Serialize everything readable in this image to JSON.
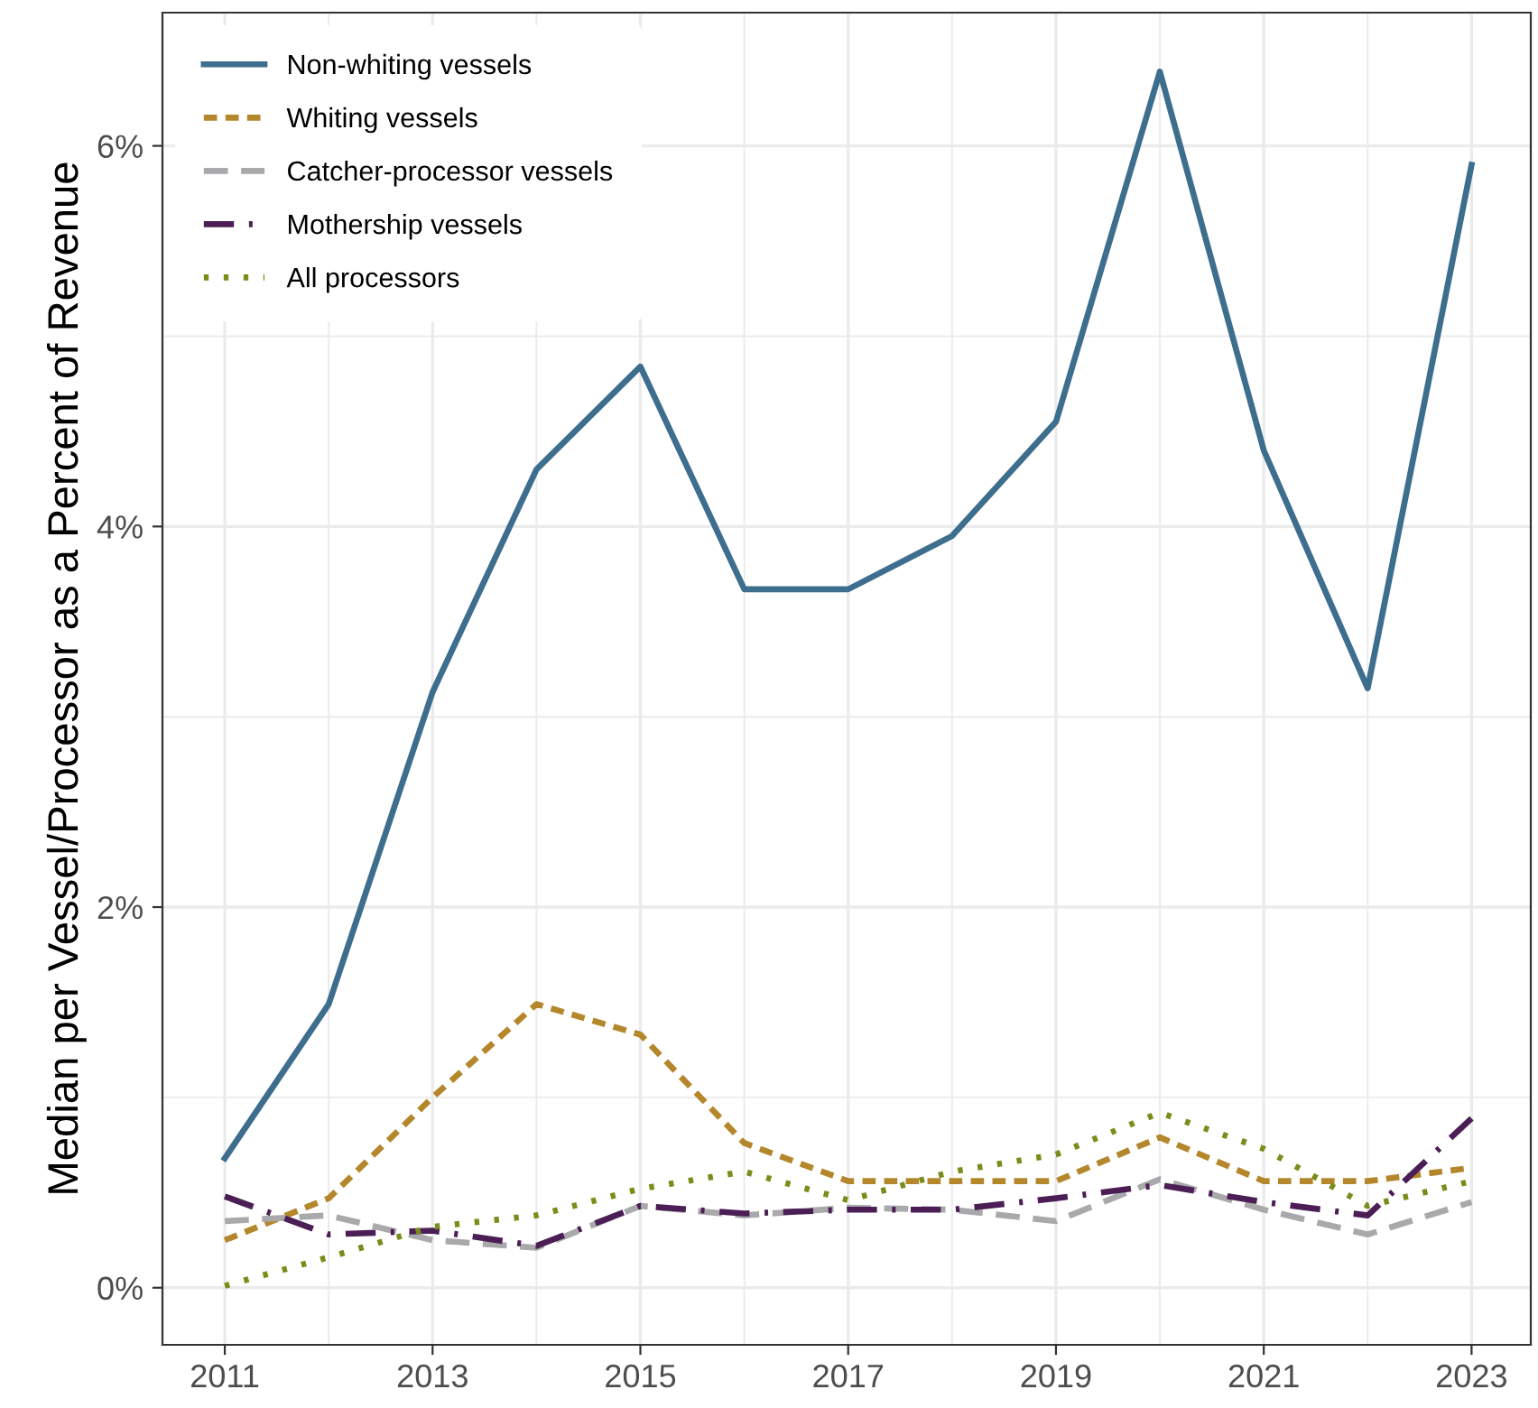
{
  "chart_data": {
    "type": "line",
    "ylabel": "Median per Vessel/Processor as a Percent of Revenue",
    "x": [
      2011,
      2012,
      2013,
      2014,
      2015,
      2016,
      2017,
      2018,
      2019,
      2020,
      2021,
      2022,
      2023
    ],
    "xlim": [
      2010.4,
      2023.57
    ],
    "xticks": [
      2011,
      2013,
      2015,
      2017,
      2019,
      2021,
      2023
    ],
    "ylim": [
      -0.3,
      6.7
    ],
    "yticks": [
      {
        "value": 0,
        "label": "0%"
      },
      {
        "value": 2,
        "label": "2%"
      },
      {
        "value": 4,
        "label": "4%"
      },
      {
        "value": 6,
        "label": "6%"
      }
    ],
    "grid": true,
    "legend": "top left",
    "series": [
      {
        "name": "Non-whiting vessels",
        "color": "#3e6e8e",
        "line_style": "solid",
        "values": [
          0.68,
          1.49,
          3.13,
          4.3,
          4.84,
          3.67,
          3.67,
          3.95,
          4.55,
          6.39,
          4.4,
          3.15,
          5.9
        ]
      },
      {
        "name": "Whiting vessels",
        "color": "#b5872c",
        "line_style": "dashed",
        "values": [
          0.25,
          0.47,
          1.0,
          1.49,
          1.33,
          0.76,
          0.56,
          0.56,
          0.56,
          0.79,
          0.56,
          0.56,
          0.63
        ]
      },
      {
        "name": "Catcher-processor vessels",
        "color": "#a9a9ab",
        "line_style": "longdash",
        "values": [
          0.35,
          0.38,
          0.25,
          0.21,
          0.43,
          0.38,
          0.42,
          0.41,
          0.35,
          0.57,
          0.41,
          0.28,
          0.45
        ]
      },
      {
        "name": "Mothership vessels",
        "color": "#4b1f55",
        "line_style": "dashdot",
        "values": [
          0.48,
          0.28,
          0.3,
          0.22,
          0.43,
          0.39,
          0.41,
          0.41,
          0.47,
          0.54,
          0.45,
          0.38,
          0.89
        ]
      },
      {
        "name": "All processors",
        "color": "#7a8c1a",
        "line_style": "dotted",
        "values": [
          0.01,
          0.16,
          0.32,
          0.38,
          0.52,
          0.61,
          0.46,
          0.61,
          0.7,
          0.92,
          0.73,
          0.43,
          0.56
        ]
      }
    ]
  }
}
